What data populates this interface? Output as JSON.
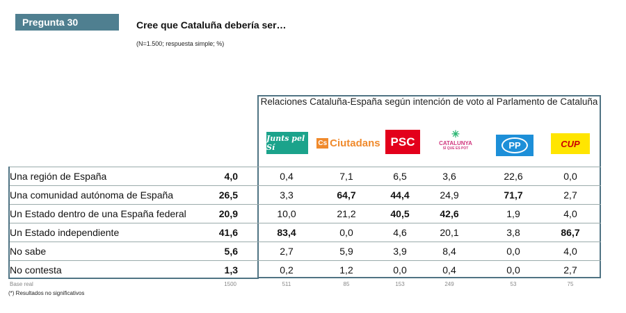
{
  "header": {
    "badge": "Pregunta 30",
    "title": "Cree que Cataluña debería ser…",
    "subtitle": "(N=1.500; respuesta simple; %)"
  },
  "table": {
    "group_header": "Relaciones Cataluña-España según intención de voto al Parlamento de Cataluña",
    "parties": [
      {
        "name": "Junts pel Sí",
        "logo_text": "Junts pel Sí",
        "color": "#1ba38b"
      },
      {
        "name": "Ciutadans",
        "logo_text": "Ciutadans",
        "color": "#f08a2c"
      },
      {
        "name": "PSC",
        "logo_text": "PSC",
        "color": "#e3001b"
      },
      {
        "name": "Catalunya Sí que es Pot",
        "logo_text": "CATALUNYA",
        "logo_sub": "SÍ QUE ES POT",
        "color": "#d0377e"
      },
      {
        "name": "PP",
        "logo_text": "PP",
        "color": "#1d8fd8"
      },
      {
        "name": "CUP",
        "logo_text": "CUP",
        "color": "#ffe500"
      }
    ],
    "rows": [
      {
        "label": "Una región de España",
        "total": "4,0",
        "values": [
          "0,4",
          "7,1",
          "6,5",
          "3,6",
          "22,6",
          "0,0"
        ],
        "bold": [
          false,
          false,
          false,
          false,
          false,
          false
        ]
      },
      {
        "label": "Una comunidad autónoma de España",
        "total": "26,5",
        "values": [
          "3,3",
          "64,7",
          "44,4",
          "24,9",
          "71,7",
          "2,7"
        ],
        "bold": [
          false,
          true,
          true,
          false,
          true,
          false
        ]
      },
      {
        "label": "Un Estado dentro de una España federal",
        "total": "20,9",
        "values": [
          "10,0",
          "21,2",
          "40,5",
          "42,6",
          "1,9",
          "4,0"
        ],
        "bold": [
          false,
          false,
          true,
          true,
          false,
          false
        ]
      },
      {
        "label": "Un Estado independiente",
        "total": "41,6",
        "values": [
          "83,4",
          "0,0",
          "4,6",
          "20,1",
          "3,8",
          "86,7"
        ],
        "bold": [
          true,
          false,
          false,
          false,
          false,
          true
        ]
      },
      {
        "label": "No sabe",
        "total": "5,6",
        "values": [
          "2,7",
          "5,9",
          "3,9",
          "8,4",
          "0,0",
          "4,0"
        ],
        "bold": [
          false,
          false,
          false,
          false,
          false,
          false
        ]
      },
      {
        "label": "No contesta",
        "total": "1,3",
        "values": [
          "0,2",
          "1,2",
          "0,0",
          "0,4",
          "0,0",
          "2,7"
        ],
        "bold": [
          false,
          false,
          false,
          false,
          false,
          false
        ]
      }
    ],
    "base": {
      "label": "Base real",
      "total": "1500",
      "values": [
        "511",
        "85",
        "153",
        "249",
        "53",
        "75"
      ]
    }
  },
  "footnote": "(*) Resultados no significativos"
}
